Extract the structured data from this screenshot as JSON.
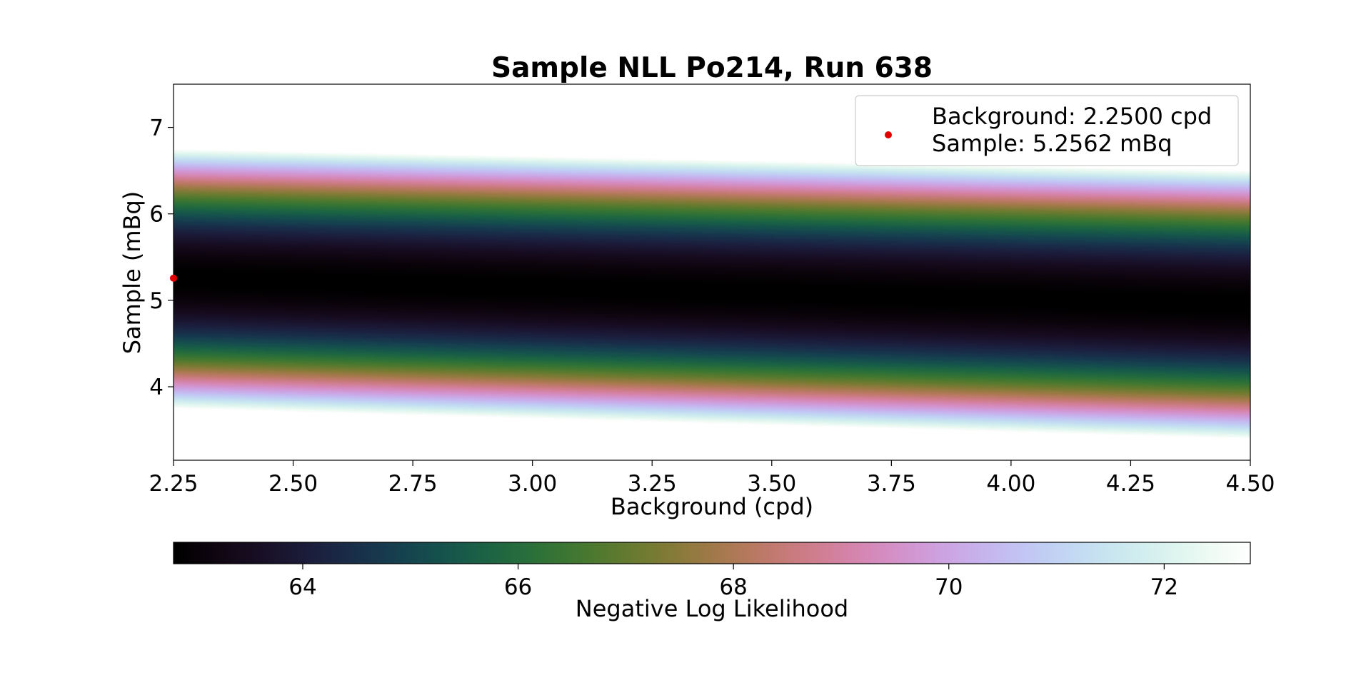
{
  "chart_data": {
    "type": "heatmap",
    "title": "Sample NLL Po214, Run 638",
    "xlabel": "Background (cpd)",
    "ylabel": "Sample (mBq)",
    "xlim": [
      2.25,
      4.5
    ],
    "ylim": [
      3.15,
      7.5
    ],
    "x_ticks": [
      "2.25",
      "2.50",
      "2.75",
      "3.00",
      "3.25",
      "3.50",
      "3.75",
      "4.00",
      "4.25",
      "4.50"
    ],
    "y_ticks": [
      "4",
      "5",
      "6",
      "7"
    ],
    "colorbar": {
      "label": "Negative Log Likelihood",
      "range": [
        62.8,
        72.8
      ],
      "ticks": [
        "64",
        "66",
        "68",
        "70",
        "72"
      ],
      "colormap": "cubehelix"
    },
    "nll_surface": {
      "minimum_nll": 62.8,
      "clip_above": 72.8,
      "center_at_xmin": 5.25,
      "center_at_xmax": 4.95,
      "band_half_width_at_xmin": 1.5,
      "band_half_width_at_xmax": 1.55
    },
    "best_fit": {
      "x": 2.25,
      "y": 5.2562,
      "color": "#e00000"
    },
    "legend": {
      "position": "upper right",
      "line1": "Background: 2.2500 cpd",
      "line2": "Sample: 5.2562 mBq"
    }
  }
}
